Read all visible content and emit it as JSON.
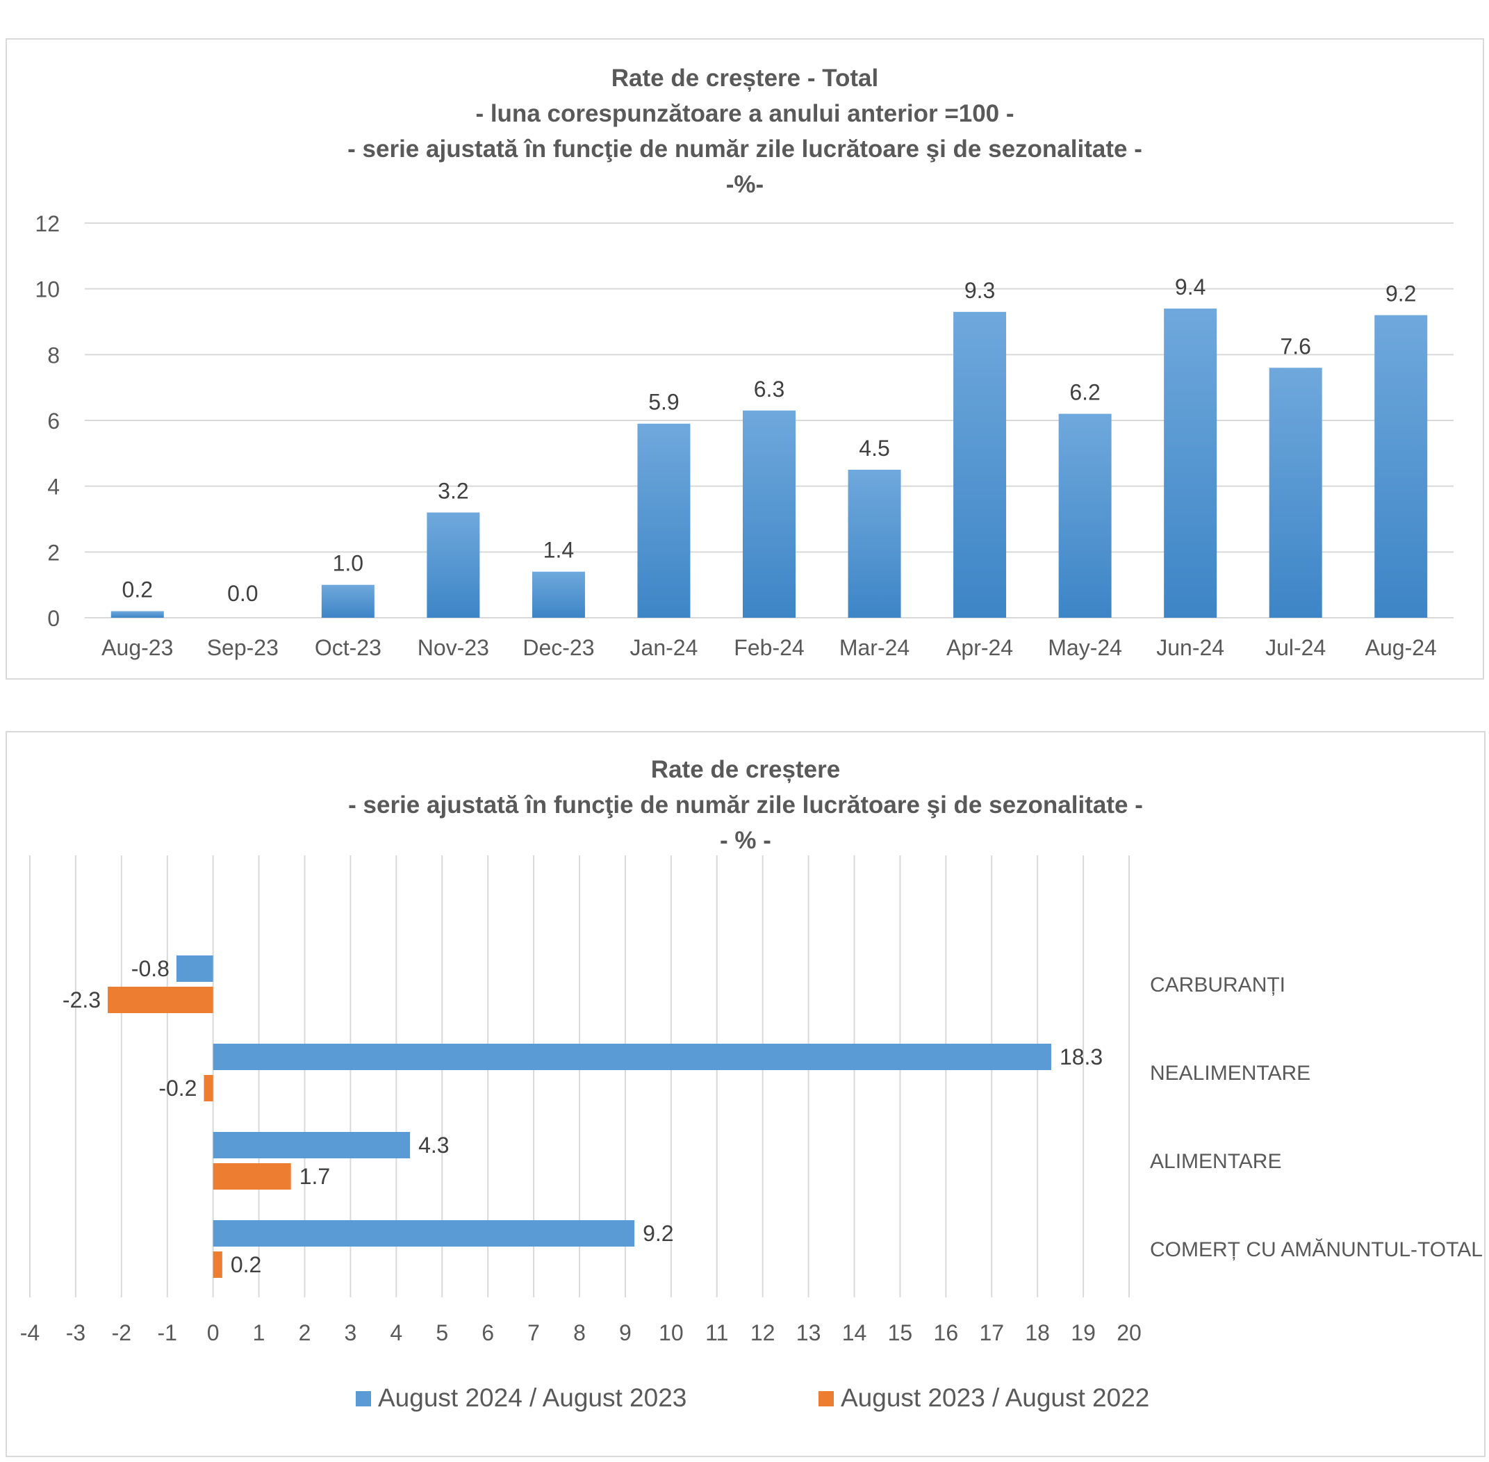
{
  "chart_data": [
    {
      "type": "bar",
      "title_lines": [
        "Rate de creștere - Total",
        "- luna corespunzătoare a anului anterior =100 -",
        "- serie ajustată în funcţie de număr zile lucrătoare şi de sezonalitate -",
        "-%-"
      ],
      "categories": [
        "Aug-23",
        "Sep-23",
        "Oct-23",
        "Nov-23",
        "Dec-23",
        "Jan-24",
        "Feb-24",
        "Mar-24",
        "Apr-24",
        "May-24",
        "Jun-24",
        "Jul-24",
        "Aug-24"
      ],
      "values": [
        0.2,
        0.0,
        1.0,
        3.2,
        1.4,
        5.9,
        6.3,
        4.5,
        9.3,
        6.2,
        9.4,
        7.6,
        9.2
      ],
      "value_labels": [
        "0.2",
        "0.0",
        "1.0",
        "3.2",
        "1.4",
        "5.9",
        "6.3",
        "4.5",
        "9.3",
        "6.2",
        "9.4",
        "7.6",
        "9.2"
      ],
      "yticks": [
        "0",
        "2",
        "4",
        "6",
        "8",
        "10",
        "12"
      ],
      "ylim": [
        0,
        12
      ],
      "grid": true,
      "colors": {
        "bar": "#5b9bd5",
        "bar_top": "#6fa8dc",
        "bar_bottom": "#3d85c6"
      }
    },
    {
      "type": "bar",
      "orientation": "horizontal",
      "title_lines": [
        "Rate de creștere",
        "- serie ajustată în funcţie de număr zile lucrătoare şi de sezonalitate -",
        "- % -"
      ],
      "categories": [
        "CARBURANȚI",
        "NEALIMENTARE",
        "ALIMENTARE",
        "COMERȚ CU AMĂNUNTUL-TOTAL"
      ],
      "series": [
        {
          "name": "August 2024 / August 2023",
          "values": [
            -0.8,
            18.3,
            4.3,
            9.2
          ],
          "labels": [
            "-0.8",
            "18.3",
            "4.3",
            "9.2"
          ],
          "color": "#5b9bd5"
        },
        {
          "name": "August 2023 / August 2022",
          "values": [
            -2.3,
            -0.2,
            1.7,
            0.2
          ],
          "labels": [
            "-2.3",
            "-0.2",
            "1.7",
            "0.2"
          ],
          "color": "#ed7d31"
        }
      ],
      "xticks": [
        "-4",
        "-3",
        "-2",
        "-1",
        "0",
        "1",
        "2",
        "3",
        "4",
        "5",
        "6",
        "7",
        "8",
        "9",
        "10",
        "11",
        "12",
        "13",
        "14",
        "15",
        "16",
        "17",
        "18",
        "19",
        "20"
      ],
      "xlim": [
        -4,
        20
      ],
      "grid": true,
      "legend_position": "bottom"
    }
  ]
}
